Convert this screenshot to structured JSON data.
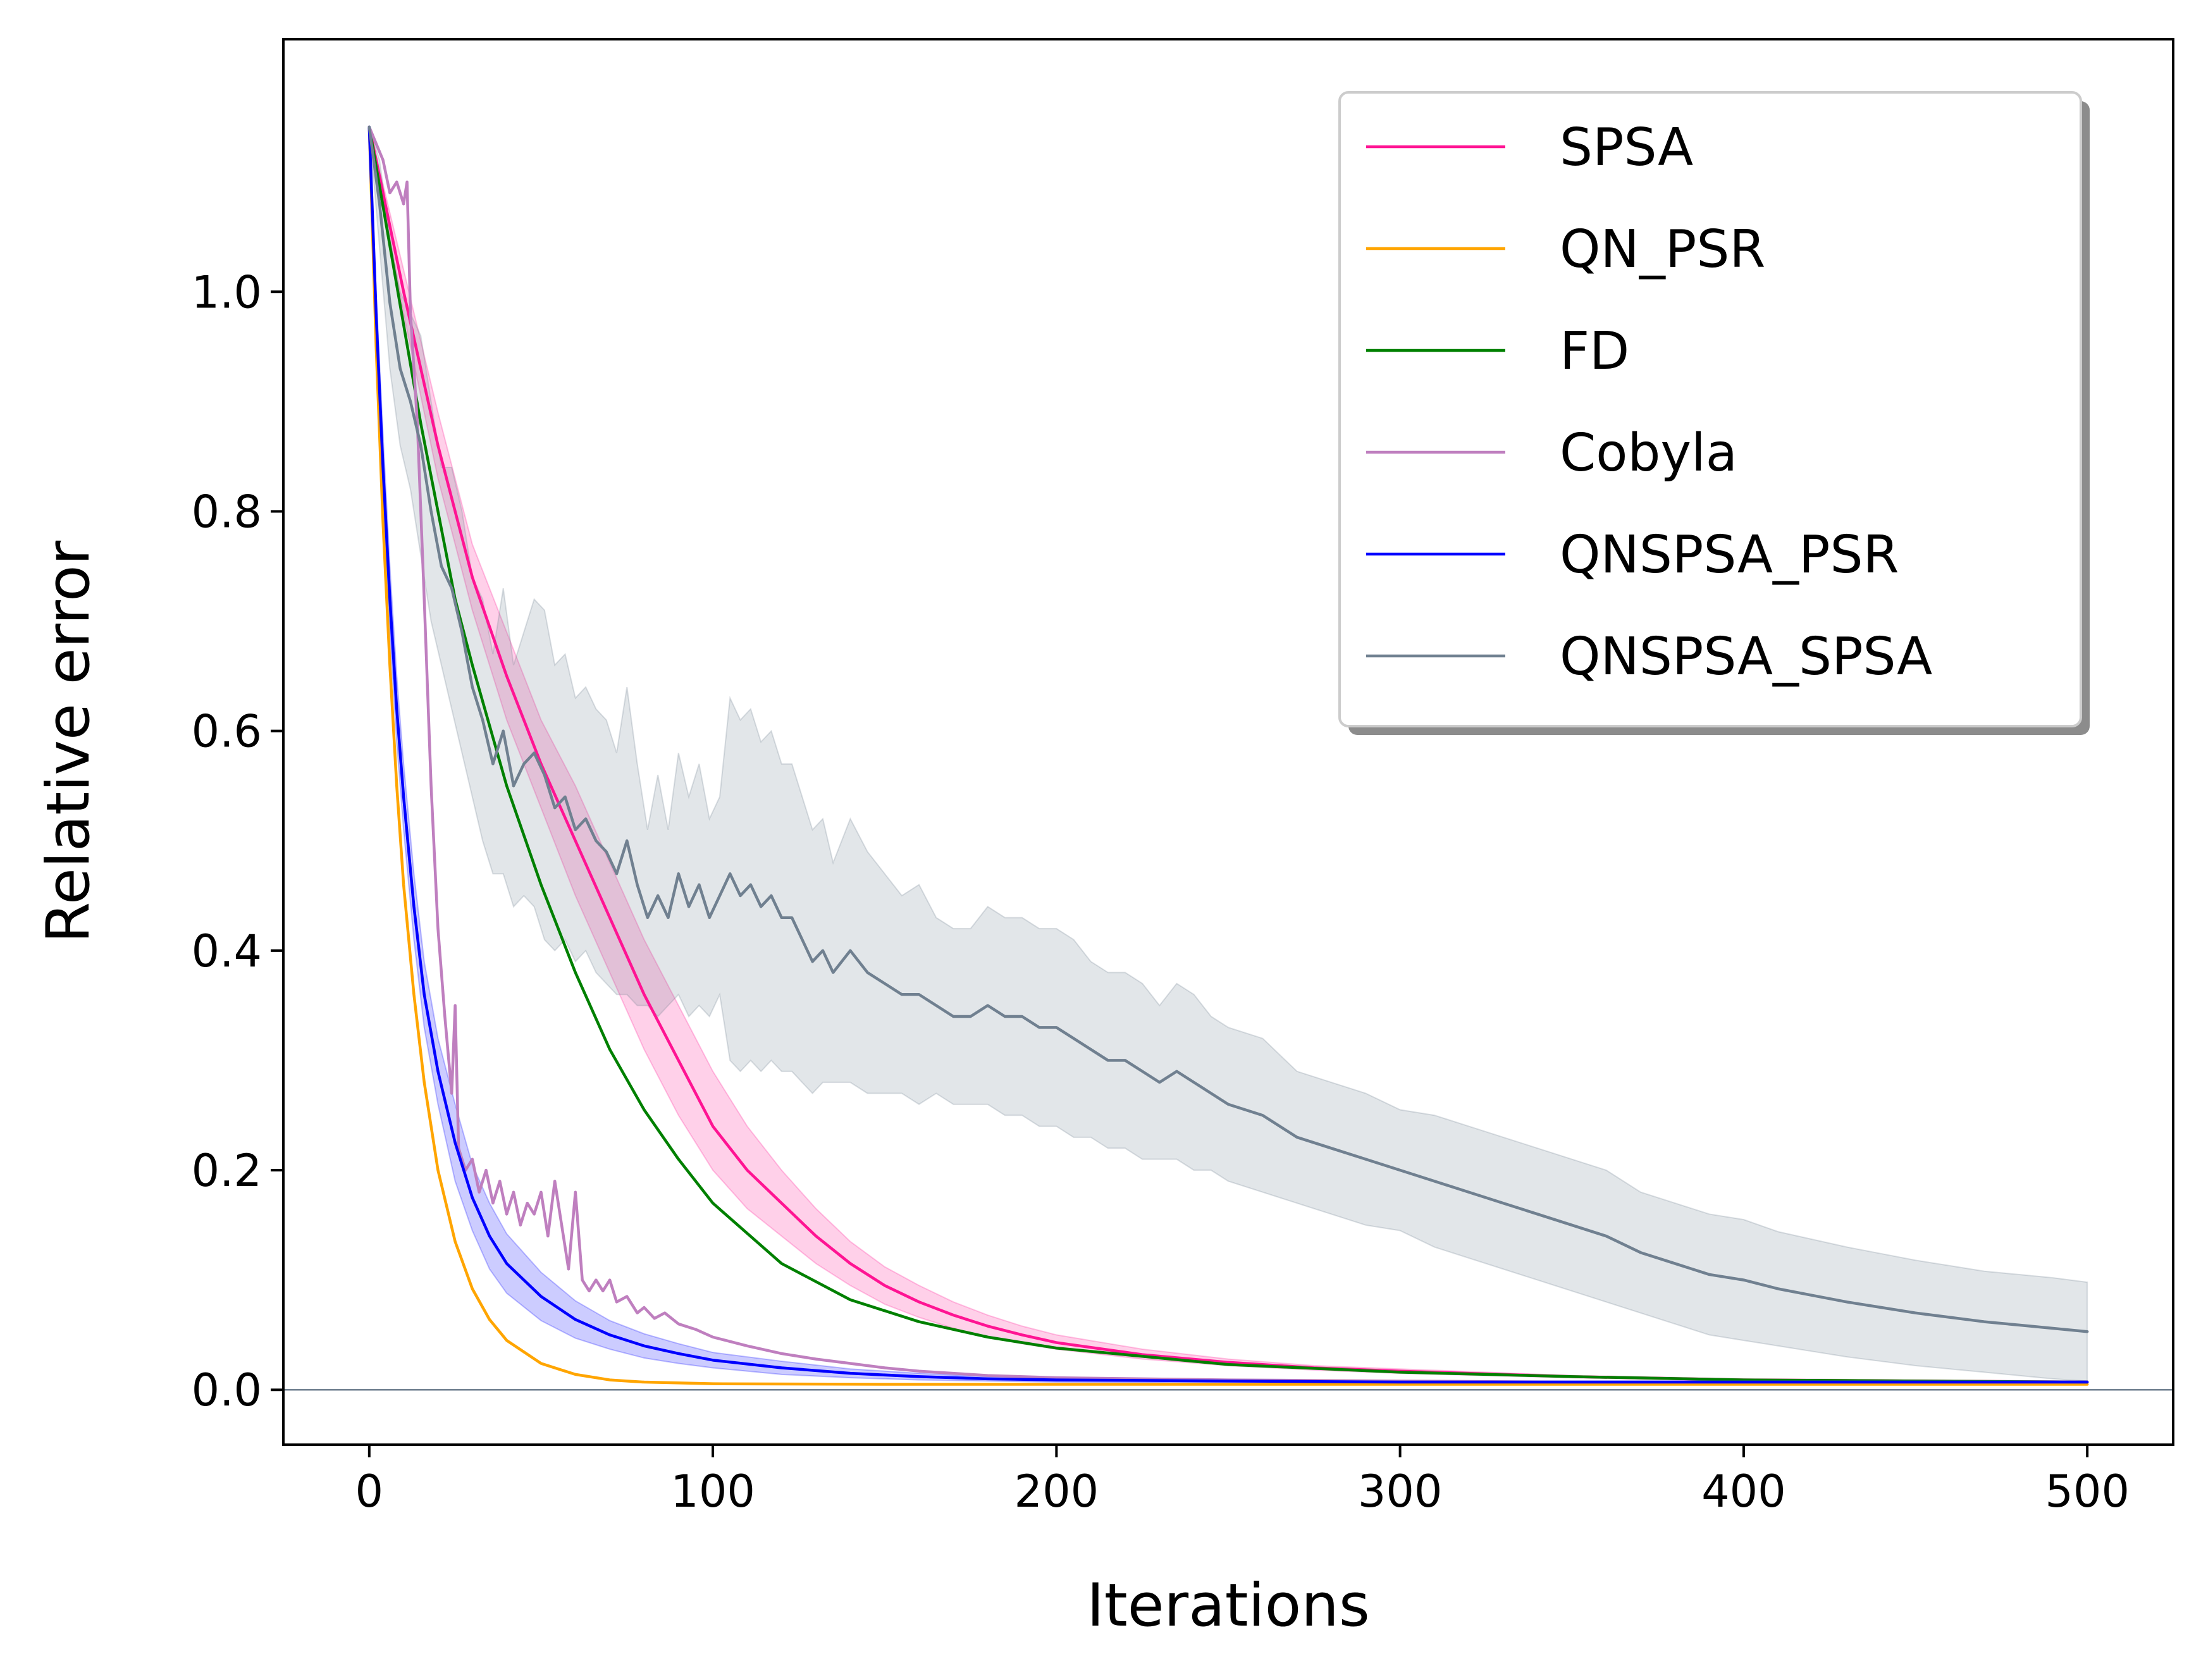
{
  "chart_data": {
    "type": "line",
    "xlabel": "Iterations",
    "ylabel": "Relative error",
    "xlim": [
      -25,
      525
    ],
    "ylim": [
      -0.05,
      1.23
    ],
    "xticks": [
      0,
      100,
      200,
      300,
      400,
      500
    ],
    "xtick_labels": [
      "0",
      "100",
      "200",
      "300",
      "400",
      "500"
    ],
    "yticks": [
      0.0,
      0.2,
      0.4,
      0.6,
      0.8,
      1.0
    ],
    "ytick_labels": [
      "0.0",
      "0.2",
      "0.4",
      "0.6",
      "0.8",
      "1.0"
    ],
    "grid": false,
    "legend_position": "top-right",
    "legend_shadow": true,
    "reference_line": {
      "y": 0.0,
      "color": "#708090"
    },
    "series": [
      {
        "name": "SPSA",
        "color": "#ff1493",
        "x": [
          0,
          10,
          20,
          30,
          40,
          50,
          60,
          70,
          80,
          90,
          100,
          110,
          120,
          130,
          140,
          150,
          160,
          170,
          180,
          190,
          200,
          225,
          250,
          275,
          300,
          350,
          400,
          450,
          500
        ],
        "y": [
          1.15,
          1.0,
          0.86,
          0.74,
          0.65,
          0.57,
          0.5,
          0.43,
          0.36,
          0.3,
          0.24,
          0.2,
          0.17,
          0.14,
          0.115,
          0.095,
          0.08,
          0.068,
          0.058,
          0.05,
          0.043,
          0.032,
          0.025,
          0.02,
          0.017,
          0.012,
          0.009,
          0.008,
          0.007
        ],
        "band_lower": [
          1.15,
          0.98,
          0.83,
          0.71,
          0.61,
          0.53,
          0.45,
          0.38,
          0.31,
          0.25,
          0.2,
          0.165,
          0.14,
          0.115,
          0.095,
          0.078,
          0.066,
          0.056,
          0.048,
          0.042,
          0.037,
          0.028,
          0.022,
          0.018,
          0.015,
          0.011,
          0.008,
          0.007,
          0.006
        ],
        "band_upper": [
          1.15,
          1.02,
          0.89,
          0.77,
          0.69,
          0.61,
          0.55,
          0.48,
          0.41,
          0.35,
          0.29,
          0.24,
          0.2,
          0.165,
          0.135,
          0.112,
          0.095,
          0.08,
          0.068,
          0.058,
          0.05,
          0.037,
          0.028,
          0.022,
          0.019,
          0.013,
          0.01,
          0.009,
          0.008
        ]
      },
      {
        "name": "QN_PSR",
        "color": "#ffa500",
        "x": [
          0,
          2,
          4,
          6,
          8,
          10,
          13,
          16,
          20,
          25,
          30,
          35,
          40,
          50,
          60,
          70,
          80,
          100,
          150,
          200,
          300,
          400,
          500
        ],
        "y": [
          1.15,
          0.95,
          0.79,
          0.66,
          0.55,
          0.46,
          0.36,
          0.28,
          0.2,
          0.135,
          0.092,
          0.064,
          0.045,
          0.024,
          0.014,
          0.009,
          0.007,
          0.0055,
          0.005,
          0.005,
          0.005,
          0.005,
          0.005
        ]
      },
      {
        "name": "FD",
        "color": "#008000",
        "x": [
          0,
          5,
          10,
          15,
          20,
          25,
          30,
          40,
          50,
          60,
          70,
          80,
          90,
          100,
          120,
          140,
          160,
          180,
          200,
          250,
          300,
          350,
          400,
          450,
          500
        ],
        "y": [
          1.15,
          1.06,
          0.97,
          0.88,
          0.8,
          0.72,
          0.66,
          0.55,
          0.46,
          0.38,
          0.31,
          0.255,
          0.21,
          0.17,
          0.115,
          0.082,
          0.062,
          0.048,
          0.038,
          0.023,
          0.016,
          0.012,
          0.009,
          0.008,
          0.007
        ]
      },
      {
        "name": "Cobyla",
        "color": "#bf7fbf",
        "x": [
          0,
          4,
          6,
          8,
          10,
          11,
          12,
          14,
          16,
          18,
          20,
          22,
          24,
          25,
          26,
          28,
          30,
          32,
          34,
          36,
          38,
          40,
          42,
          44,
          46,
          48,
          50,
          52,
          54,
          56,
          58,
          60,
          62,
          64,
          66,
          68,
          70,
          72,
          75,
          78,
          80,
          83,
          86,
          90,
          95,
          100,
          110,
          120,
          130,
          140,
          150,
          160,
          180,
          200,
          250,
          300,
          350,
          400,
          450,
          500
        ],
        "y": [
          1.15,
          1.12,
          1.09,
          1.1,
          1.08,
          1.1,
          0.98,
          0.88,
          0.72,
          0.55,
          0.42,
          0.34,
          0.27,
          0.35,
          0.22,
          0.2,
          0.21,
          0.18,
          0.2,
          0.17,
          0.19,
          0.16,
          0.18,
          0.15,
          0.17,
          0.16,
          0.18,
          0.14,
          0.19,
          0.15,
          0.11,
          0.18,
          0.1,
          0.09,
          0.1,
          0.09,
          0.1,
          0.08,
          0.085,
          0.07,
          0.075,
          0.065,
          0.07,
          0.06,
          0.055,
          0.048,
          0.04,
          0.033,
          0.028,
          0.024,
          0.02,
          0.017,
          0.013,
          0.011,
          0.009,
          0.008,
          0.007,
          0.007,
          0.007,
          0.007
        ]
      },
      {
        "name": "QNSPSA_PSR",
        "color": "#0000ff",
        "x": [
          0,
          2,
          4,
          6,
          8,
          10,
          13,
          16,
          20,
          25,
          30,
          35,
          40,
          50,
          60,
          70,
          80,
          90,
          100,
          120,
          140,
          160,
          180,
          200,
          250,
          300,
          400,
          500
        ],
        "y": [
          1.15,
          0.98,
          0.84,
          0.72,
          0.62,
          0.54,
          0.44,
          0.36,
          0.29,
          0.225,
          0.175,
          0.14,
          0.115,
          0.085,
          0.064,
          0.05,
          0.04,
          0.033,
          0.027,
          0.02,
          0.015,
          0.012,
          0.01,
          0.009,
          0.008,
          0.007,
          0.007,
          0.007
        ],
        "band_lower": [
          1.15,
          0.96,
          0.81,
          0.69,
          0.59,
          0.51,
          0.41,
          0.33,
          0.26,
          0.19,
          0.145,
          0.11,
          0.088,
          0.063,
          0.047,
          0.037,
          0.029,
          0.024,
          0.02,
          0.014,
          0.011,
          0.009,
          0.008,
          0.007,
          0.006,
          0.006,
          0.006,
          0.006
        ],
        "band_upper": [
          1.15,
          1.0,
          0.87,
          0.75,
          0.65,
          0.57,
          0.47,
          0.39,
          0.32,
          0.26,
          0.205,
          0.17,
          0.142,
          0.107,
          0.081,
          0.063,
          0.051,
          0.042,
          0.034,
          0.026,
          0.019,
          0.015,
          0.012,
          0.011,
          0.009,
          0.008,
          0.008,
          0.008
        ]
      },
      {
        "name": "QNSPSA_SPSA",
        "color": "#708090",
        "x": [
          0,
          3,
          6,
          9,
          12,
          15,
          18,
          21,
          24,
          27,
          30,
          33,
          36,
          39,
          42,
          45,
          48,
          51,
          54,
          57,
          60,
          63,
          66,
          69,
          72,
          75,
          78,
          81,
          84,
          87,
          90,
          93,
          96,
          99,
          102,
          105,
          108,
          111,
          114,
          117,
          120,
          123,
          126,
          129,
          132,
          135,
          140,
          145,
          150,
          155,
          160,
          165,
          170,
          175,
          180,
          185,
          190,
          195,
          200,
          205,
          210,
          215,
          220,
          225,
          230,
          235,
          240,
          245,
          250,
          260,
          270,
          280,
          290,
          300,
          310,
          320,
          330,
          340,
          350,
          360,
          370,
          380,
          390,
          400,
          410,
          420,
          430,
          440,
          450,
          460,
          470,
          480,
          490,
          500
        ],
        "y": [
          1.15,
          1.08,
          0.99,
          0.93,
          0.9,
          0.86,
          0.8,
          0.75,
          0.73,
          0.69,
          0.64,
          0.61,
          0.57,
          0.6,
          0.55,
          0.57,
          0.58,
          0.56,
          0.53,
          0.54,
          0.51,
          0.52,
          0.5,
          0.49,
          0.47,
          0.5,
          0.46,
          0.43,
          0.45,
          0.43,
          0.47,
          0.44,
          0.46,
          0.43,
          0.45,
          0.47,
          0.45,
          0.46,
          0.44,
          0.45,
          0.43,
          0.43,
          0.41,
          0.39,
          0.4,
          0.38,
          0.4,
          0.38,
          0.37,
          0.36,
          0.36,
          0.35,
          0.34,
          0.34,
          0.35,
          0.34,
          0.34,
          0.33,
          0.33,
          0.32,
          0.31,
          0.3,
          0.3,
          0.29,
          0.28,
          0.29,
          0.28,
          0.27,
          0.26,
          0.25,
          0.23,
          0.22,
          0.21,
          0.2,
          0.19,
          0.18,
          0.17,
          0.16,
          0.15,
          0.14,
          0.125,
          0.115,
          0.105,
          0.1,
          0.092,
          0.086,
          0.08,
          0.075,
          0.07,
          0.066,
          0.062,
          0.059,
          0.056,
          0.053
        ],
        "band_lower": [
          1.15,
          1.04,
          0.93,
          0.86,
          0.82,
          0.76,
          0.7,
          0.66,
          0.62,
          0.58,
          0.54,
          0.5,
          0.47,
          0.47,
          0.44,
          0.45,
          0.44,
          0.41,
          0.4,
          0.41,
          0.39,
          0.4,
          0.38,
          0.37,
          0.36,
          0.36,
          0.35,
          0.35,
          0.34,
          0.35,
          0.36,
          0.34,
          0.35,
          0.34,
          0.36,
          0.3,
          0.29,
          0.3,
          0.29,
          0.3,
          0.29,
          0.29,
          0.28,
          0.27,
          0.28,
          0.28,
          0.28,
          0.27,
          0.27,
          0.27,
          0.26,
          0.27,
          0.26,
          0.26,
          0.26,
          0.25,
          0.25,
          0.24,
          0.24,
          0.23,
          0.23,
          0.22,
          0.22,
          0.21,
          0.21,
          0.21,
          0.2,
          0.2,
          0.19,
          0.18,
          0.17,
          0.16,
          0.15,
          0.145,
          0.13,
          0.12,
          0.11,
          0.1,
          0.09,
          0.08,
          0.07,
          0.06,
          0.05,
          0.045,
          0.04,
          0.035,
          0.03,
          0.026,
          0.022,
          0.019,
          0.016,
          0.013,
          0.01,
          0.008
        ],
        "band_upper": [
          1.15,
          1.12,
          1.05,
          1.0,
          0.98,
          0.96,
          0.9,
          0.84,
          0.84,
          0.8,
          0.74,
          0.72,
          0.67,
          0.73,
          0.66,
          0.69,
          0.72,
          0.71,
          0.66,
          0.67,
          0.63,
          0.64,
          0.62,
          0.61,
          0.58,
          0.64,
          0.57,
          0.51,
          0.56,
          0.51,
          0.58,
          0.54,
          0.57,
          0.52,
          0.54,
          0.63,
          0.61,
          0.62,
          0.59,
          0.6,
          0.57,
          0.57,
          0.54,
          0.51,
          0.52,
          0.48,
          0.52,
          0.49,
          0.47,
          0.45,
          0.46,
          0.43,
          0.42,
          0.42,
          0.44,
          0.43,
          0.43,
          0.42,
          0.42,
          0.41,
          0.39,
          0.38,
          0.38,
          0.37,
          0.35,
          0.37,
          0.36,
          0.34,
          0.33,
          0.32,
          0.29,
          0.28,
          0.27,
          0.255,
          0.25,
          0.24,
          0.23,
          0.22,
          0.21,
          0.2,
          0.18,
          0.17,
          0.16,
          0.155,
          0.144,
          0.137,
          0.13,
          0.124,
          0.118,
          0.113,
          0.108,
          0.105,
          0.102,
          0.098
        ]
      }
    ]
  }
}
